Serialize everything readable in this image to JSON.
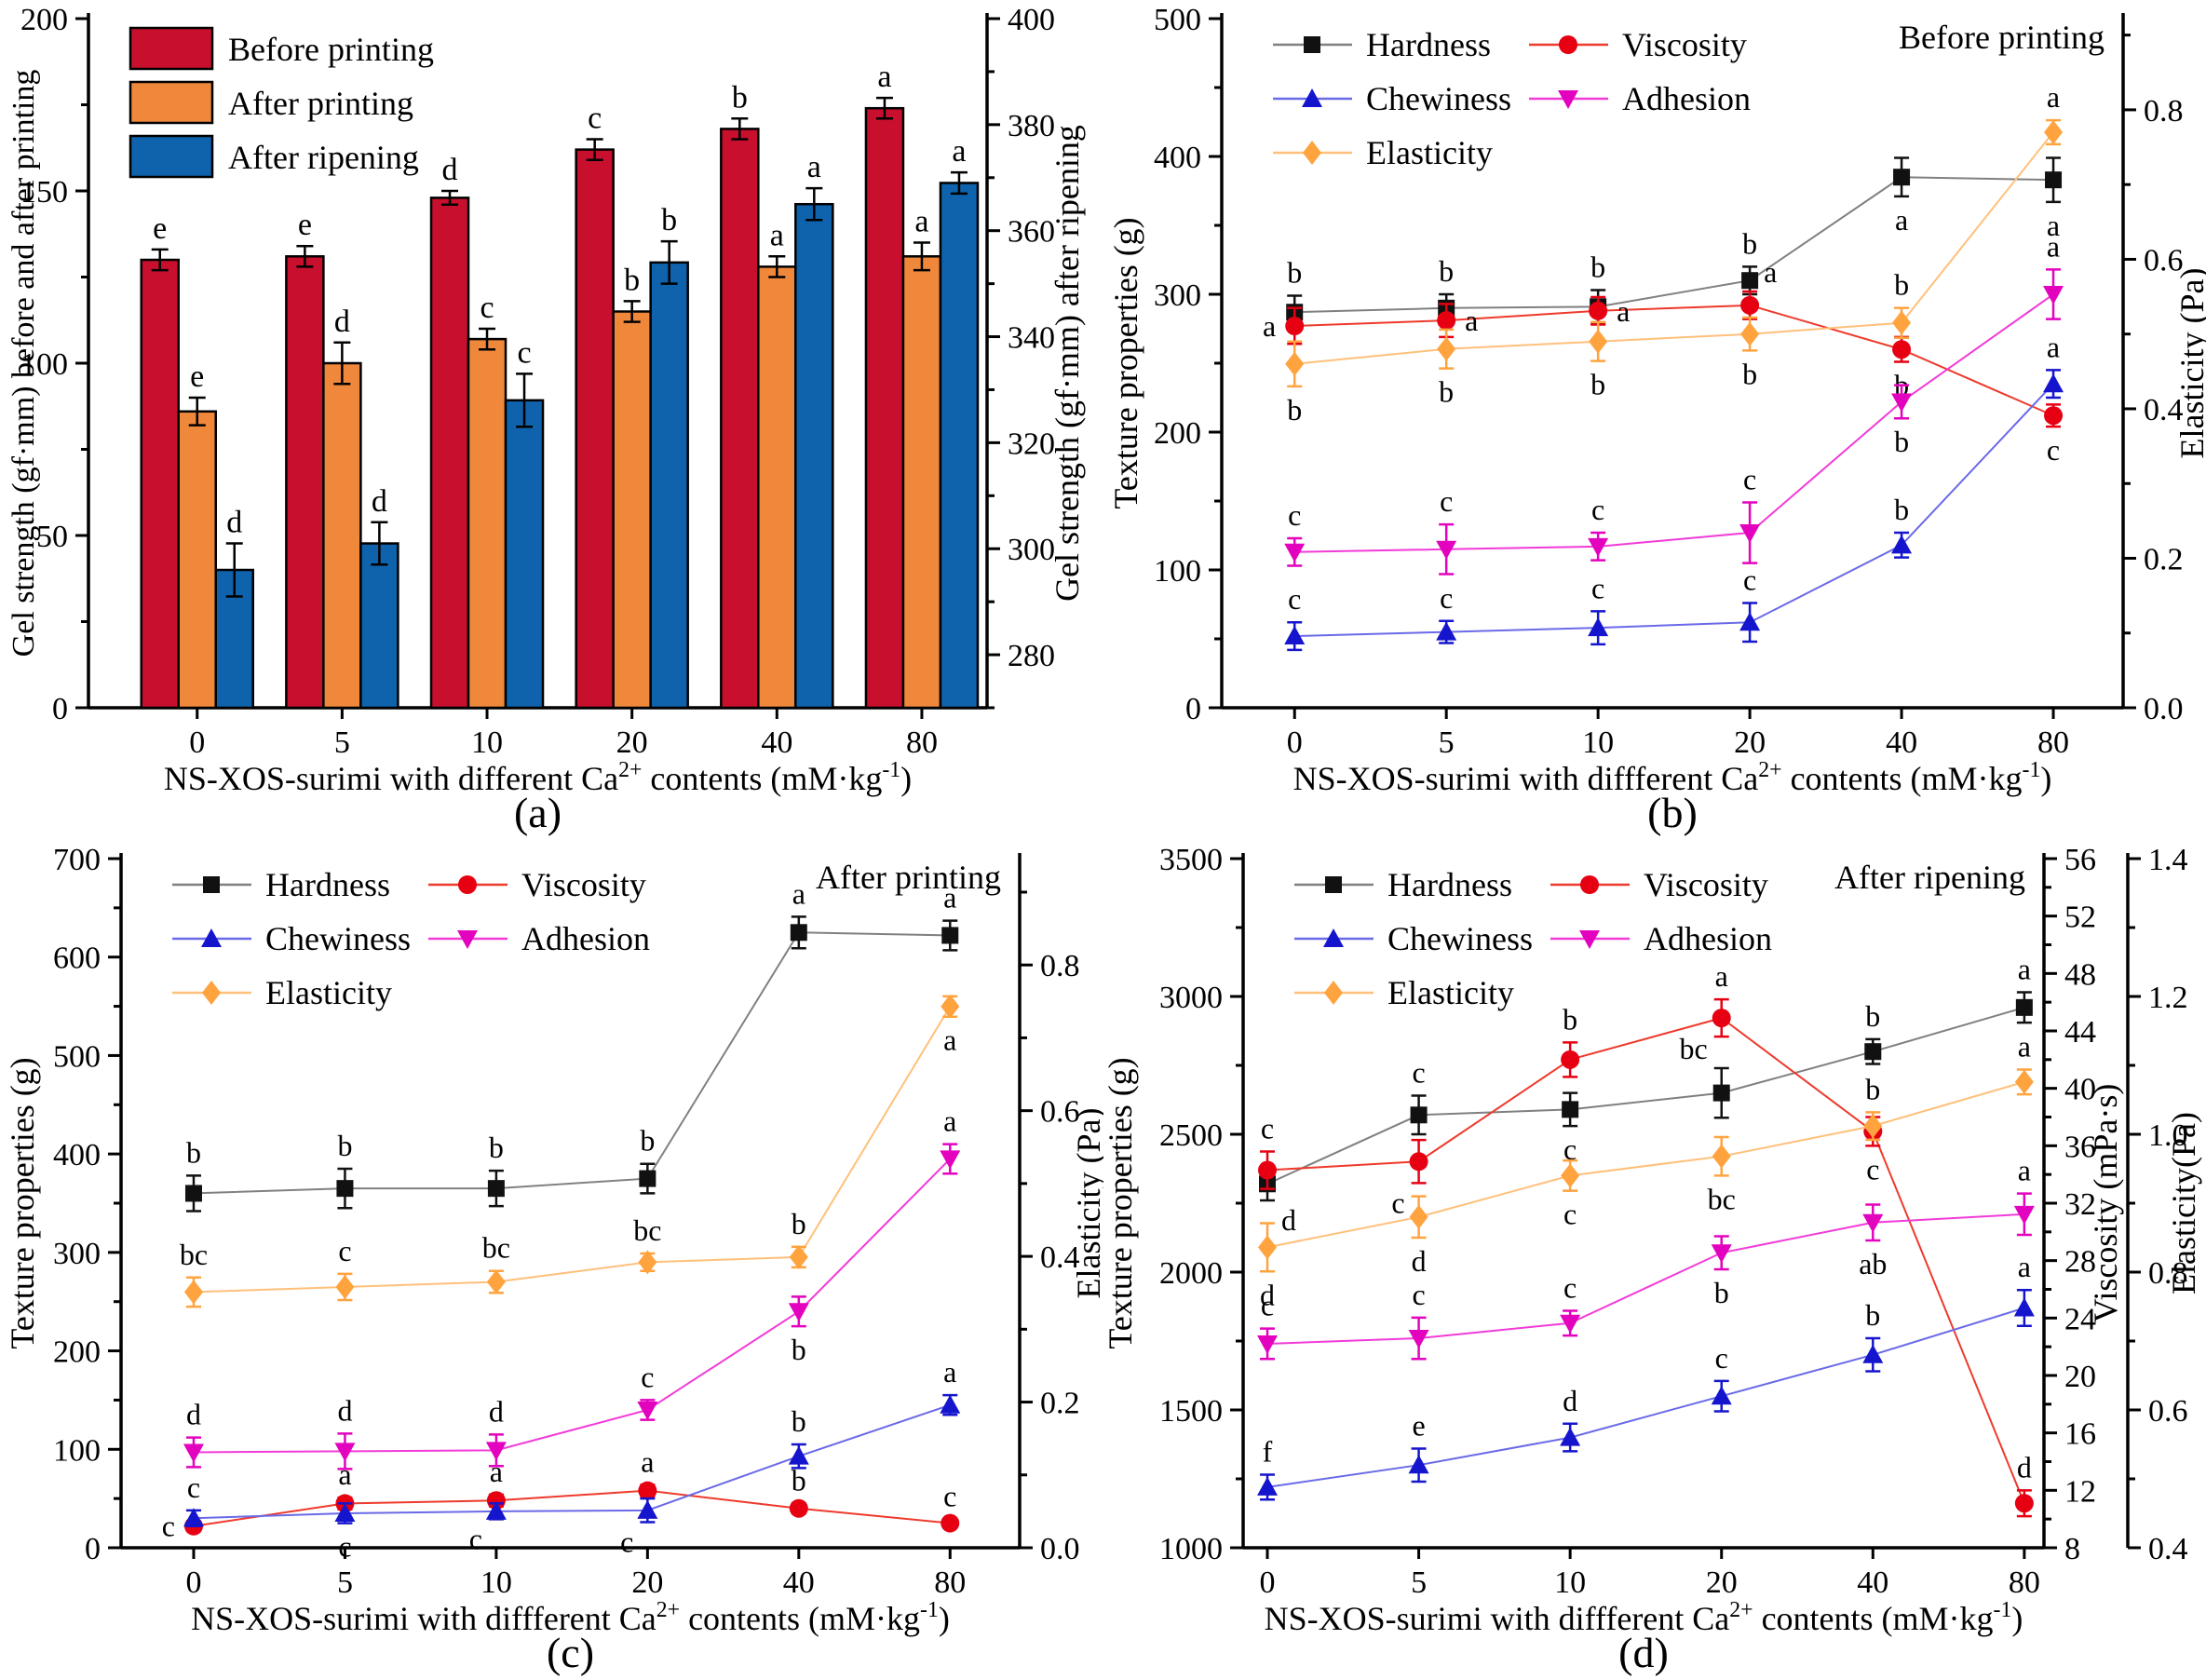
{
  "figure_background": "#ffffff",
  "axis_color": "#000000",
  "chart_data": [
    {
      "id": "a",
      "type": "bar",
      "caption": "(a)",
      "annotation": null,
      "x_categories": [
        "0",
        "5",
        "10",
        "20",
        "40",
        "80"
      ],
      "x_label_parts": [
        {
          "t": "NS-XOS-surimi with different Ca"
        },
        {
          "t": "2+",
          "sup": true
        },
        {
          "t": " contents (mM·kg"
        },
        {
          "t": "-1",
          "sup": true
        },
        {
          "t": ")"
        }
      ],
      "left_axis": {
        "label": "Gel strength (gf·mm) before and after printing",
        "min": 0,
        "max": 200,
        "ticks": [
          0,
          50,
          100,
          150,
          200
        ],
        "minor": 25,
        "fmt": 0
      },
      "right_axes": [
        {
          "label": "Gel strength (gf·mm) after ripening",
          "min": 270,
          "max": 400,
          "ticks": [
            280,
            300,
            320,
            340,
            360,
            380,
            400
          ],
          "minor": 10,
          "fmt": 0
        }
      ],
      "series": [
        {
          "name": "Before printing",
          "color": "#C8102E",
          "axis": "left",
          "values": [
            130,
            131,
            148,
            162,
            168,
            174
          ],
          "errors": [
            3,
            3,
            2,
            3,
            3,
            3
          ],
          "letters": [
            "e",
            "e",
            "d",
            "c",
            "b",
            "a"
          ]
        },
        {
          "name": "After printing",
          "color": "#F0883C",
          "axis": "left",
          "values": [
            86,
            100,
            107,
            115,
            128,
            131
          ],
          "errors": [
            4,
            6,
            3,
            3,
            3,
            4
          ],
          "letters": [
            "e",
            "d",
            "c",
            "b",
            "a",
            "a"
          ]
        },
        {
          "name": "After ripening",
          "color": "#0F63AD",
          "axis": "right0",
          "values": [
            296,
            301,
            328,
            354,
            365,
            369
          ],
          "errors": [
            5,
            4,
            5,
            4,
            3,
            2
          ],
          "letters": [
            "d",
            "d",
            "c",
            "b",
            "a",
            "a"
          ]
        }
      ]
    },
    {
      "id": "b",
      "type": "line",
      "caption": "(b)",
      "annotation": "Before printing",
      "x_categories": [
        "0",
        "5",
        "10",
        "20",
        "40",
        "80"
      ],
      "x_label_parts": [
        {
          "t": "NS-XOS-surimi with diffferent Ca"
        },
        {
          "t": "2+",
          "sup": true
        },
        {
          "t": " contents (mM·kg"
        },
        {
          "t": "-1",
          "sup": true
        },
        {
          "t": ")"
        }
      ],
      "left_axis": {
        "label": "Texture properties (g)",
        "min": 0,
        "max": 500,
        "ticks": [
          0,
          100,
          200,
          300,
          400,
          500
        ],
        "minor": 50,
        "fmt": 0
      },
      "right_axes": [
        {
          "label": "Elasticity (Pa)",
          "min": 0,
          "max": 0.922,
          "ticks": [
            0.0,
            0.2,
            0.4,
            0.6,
            0.8
          ],
          "minor": 0.1,
          "fmt": 1
        }
      ],
      "series": [
        {
          "name": "Hardness",
          "marker": "square",
          "color": "#111111",
          "line_color": "#808080",
          "axis": "left",
          "values": [
            287,
            290,
            291,
            310,
            385,
            383
          ],
          "errors": [
            12,
            10,
            12,
            10,
            14,
            16
          ],
          "letters": [
            "b",
            "b",
            "b",
            "b",
            "a",
            "a"
          ],
          "lpos": [
            "a",
            "a",
            "a",
            "a",
            "b",
            "b"
          ]
        },
        {
          "name": "Viscosity",
          "marker": "circle",
          "color": "#E60012",
          "line_color": "#EE3A2C",
          "axis": "left",
          "values": [
            277,
            281,
            288,
            292,
            260,
            212
          ],
          "errors": [
            13,
            12,
            10,
            10,
            9,
            8
          ],
          "letters": [
            "a",
            "a",
            "a",
            "a",
            "b",
            "c"
          ],
          "lpos": [
            "l",
            "r",
            "r",
            "ar",
            "b",
            "b"
          ]
        },
        {
          "name": "Chewiness",
          "marker": "triangle-up",
          "color": "#1515CD",
          "line_color": "#6A6AE8",
          "axis": "left",
          "values": [
            52,
            55,
            58,
            62,
            118,
            235
          ],
          "errors": [
            10,
            8,
            12,
            14,
            9,
            10
          ],
          "letters": [
            "c",
            "c",
            "c",
            "c",
            "b",
            "a"
          ],
          "lpos": [
            "a",
            "a",
            "a",
            "a",
            "a",
            "a"
          ]
        },
        {
          "name": "Adhesion",
          "marker": "triangle-down",
          "color": "#E302BE",
          "line_color": "#F23BD8",
          "axis": "left",
          "values": [
            113,
            115,
            117,
            127,
            222,
            300
          ],
          "errors": [
            10,
            18,
            10,
            22,
            12,
            18
          ],
          "letters": [
            "c",
            "c",
            "c",
            "c",
            "b",
            "a"
          ],
          "lpos": [
            "a",
            "a",
            "a",
            "a",
            "b",
            "a"
          ]
        },
        {
          "name": "Elasticity",
          "marker": "diamond",
          "color": "#FFA33F",
          "line_color": "#FFC07A",
          "axis": "right0",
          "values": [
            0.46,
            0.48,
            0.49,
            0.5,
            0.515,
            0.77
          ],
          "errors": [
            0.03,
            0.026,
            0.026,
            0.022,
            0.02,
            0.016
          ],
          "letters": [
            "b",
            "b",
            "b",
            "b",
            "b",
            "a"
          ],
          "lpos": [
            "b",
            "b",
            "b",
            "b",
            "a",
            "a"
          ]
        }
      ],
      "legend_columns": [
        [
          "Hardness",
          "Chewiness",
          "Elasticity"
        ],
        [
          "Viscosity",
          "Adhesion"
        ]
      ]
    },
    {
      "id": "c",
      "type": "line",
      "caption": "(c)",
      "annotation": "After printing",
      "x_categories": [
        "0",
        "5",
        "10",
        "20",
        "40",
        "80"
      ],
      "x_label_parts": [
        {
          "t": "NS-XOS-surimi with diffferent Ca"
        },
        {
          "t": "2+",
          "sup": true
        },
        {
          "t": " contents (mM·kg"
        },
        {
          "t": "-1",
          "sup": true
        },
        {
          "t": ")"
        }
      ],
      "left_axis": {
        "label": "Texture properties (g)",
        "min": 0,
        "max": 700,
        "ticks": [
          0,
          100,
          200,
          300,
          400,
          500,
          600,
          700
        ],
        "minor": 50,
        "fmt": 0
      },
      "right_axes": [
        {
          "label": "Elasticity (Pa)",
          "min": 0,
          "max": 0.946,
          "ticks": [
            0.0,
            0.2,
            0.4,
            0.6,
            0.8
          ],
          "minor": 0.1,
          "fmt": 1
        }
      ],
      "series": [
        {
          "name": "Hardness",
          "marker": "square",
          "color": "#111111",
          "line_color": "#808080",
          "axis": "left",
          "values": [
            360,
            365,
            365,
            375,
            625,
            622
          ],
          "errors": [
            18,
            20,
            18,
            15,
            16,
            15
          ],
          "letters": [
            "b",
            "b",
            "b",
            "b",
            "a",
            "a"
          ],
          "lpos": [
            "a",
            "a",
            "a",
            "a",
            "a",
            "a"
          ]
        },
        {
          "name": "Viscosity",
          "marker": "circle",
          "color": "#E60012",
          "line_color": "#EE3A2C",
          "axis": "left",
          "values": [
            22,
            45,
            48,
            58,
            40,
            25
          ],
          "errors": [
            5,
            6,
            6,
            6,
            5,
            4
          ],
          "letters": [
            "c",
            "a",
            "a",
            "a",
            "b",
            "c"
          ],
          "lpos": [
            "l",
            "a",
            "a",
            "a",
            "a",
            "a"
          ]
        },
        {
          "name": "Chewiness",
          "marker": "triangle-up",
          "color": "#1515CD",
          "line_color": "#6A6AE8",
          "axis": "left",
          "values": [
            30,
            35,
            37,
            38,
            93,
            145
          ],
          "errors": [
            8,
            10,
            8,
            12,
            12,
            10
          ],
          "letters": [
            "c",
            "c",
            "c",
            "c",
            "b",
            "a"
          ],
          "lpos": [
            "a",
            "b",
            "bl",
            "bl",
            "a",
            "a"
          ]
        },
        {
          "name": "Adhesion",
          "marker": "triangle-down",
          "color": "#E302BE",
          "line_color": "#F23BD8",
          "axis": "left",
          "values": [
            97,
            98,
            99,
            140,
            240,
            395
          ],
          "errors": [
            15,
            18,
            16,
            10,
            15,
            15
          ],
          "letters": [
            "d",
            "d",
            "d",
            "c",
            "b",
            "a"
          ],
          "lpos": [
            "a",
            "a",
            "a",
            "a",
            "b",
            "a"
          ]
        },
        {
          "name": "Elasticity",
          "marker": "diamond",
          "color": "#FFA33F",
          "line_color": "#FFC07A",
          "axis": "right0",
          "values": [
            0.351,
            0.358,
            0.365,
            0.392,
            0.399,
            0.743
          ],
          "errors": [
            0.02,
            0.018,
            0.015,
            0.012,
            0.014,
            0.014
          ],
          "letters": [
            "bc",
            "c",
            "bc",
            "bc",
            "b",
            "a"
          ],
          "lpos": [
            "a",
            "a",
            "a",
            "a",
            "a",
            "b"
          ]
        }
      ],
      "legend_columns": [
        [
          "Hardness",
          "Chewiness",
          "Elasticity"
        ],
        [
          "Viscosity",
          "Adhesion"
        ]
      ]
    },
    {
      "id": "d",
      "type": "line",
      "caption": "(d)",
      "annotation": "After ripening",
      "x_categories": [
        "0",
        "5",
        "10",
        "20",
        "40",
        "80"
      ],
      "x_label_parts": [
        {
          "t": "NS-XOS-surimi with diffferent Ca"
        },
        {
          "t": "2+",
          "sup": true
        },
        {
          "t": " contents (mM·kg"
        },
        {
          "t": "-1",
          "sup": true
        },
        {
          "t": ")"
        }
      ],
      "left_axis": {
        "label": "Texture properties (g)",
        "min": 1000,
        "max": 3500,
        "ticks": [
          1000,
          1500,
          2000,
          2500,
          3000,
          3500
        ],
        "minor": 250,
        "fmt": 0
      },
      "right_axes": [
        {
          "label": "Viscosity (mPa·s)",
          "min": 8,
          "max": 56,
          "ticks": [
            8,
            12,
            16,
            20,
            24,
            28,
            32,
            36,
            40,
            44,
            48,
            52,
            56
          ],
          "minor": 2,
          "fmt": 0
        },
        {
          "label": "Elasticity(Pa)",
          "min": 0.4,
          "max": 1.4,
          "ticks": [
            0.4,
            0.6,
            0.8,
            1.0,
            1.2,
            1.4
          ],
          "minor": 0.1,
          "fmt": 1
        }
      ],
      "series": [
        {
          "name": "Hardness",
          "marker": "square",
          "color": "#111111",
          "line_color": "#808080",
          "axis": "left",
          "values": [
            2320,
            2570,
            2590,
            2650,
            2800,
            2960
          ],
          "errors": [
            60,
            70,
            60,
            90,
            45,
            55
          ],
          "letters": [
            "d",
            "c",
            "c",
            "bc",
            "b",
            "a"
          ],
          "lpos": [
            "br",
            "a",
            "b",
            "al",
            "a",
            "a"
          ]
        },
        {
          "name": "Viscosity",
          "marker": "circle",
          "color": "#E60012",
          "line_color": "#EE3A2C",
          "axis": "right0",
          "values": [
            34.3,
            34.9,
            42.0,
            44.9,
            37.0,
            11.1
          ],
          "errors": [
            1.3,
            1.5,
            1.2,
            1.3,
            1.0,
            0.9
          ],
          "letters": [
            "c",
            "c",
            "b",
            "a",
            "c",
            "d"
          ],
          "lpos": [
            "a",
            "bl",
            "a",
            "a",
            "b",
            "a"
          ]
        },
        {
          "name": "Chewiness",
          "marker": "triangle-up",
          "color": "#1515CD",
          "line_color": "#6A6AE8",
          "axis": "left",
          "values": [
            1220,
            1300,
            1400,
            1550,
            1700,
            1870
          ],
          "errors": [
            45,
            60,
            50,
            55,
            60,
            65
          ],
          "letters": [
            "f",
            "e",
            "d",
            "c",
            "b",
            "a"
          ],
          "lpos": [
            "a",
            "a",
            "a",
            "a",
            "a",
            "a"
          ]
        },
        {
          "name": "Adhesion",
          "marker": "triangle-down",
          "color": "#E302BE",
          "line_color": "#F23BD8",
          "axis": "left",
          "values": [
            1740,
            1760,
            1815,
            2070,
            2180,
            2210
          ],
          "errors": [
            55,
            75,
            45,
            60,
            65,
            75
          ],
          "letters": [
            "c",
            "c",
            "c",
            "b",
            "ab",
            "a"
          ],
          "lpos": [
            "a",
            "a",
            "a",
            "b",
            "b",
            "a"
          ]
        },
        {
          "name": "Elasticity",
          "marker": "diamond",
          "color": "#FFA33F",
          "line_color": "#FFC07A",
          "axis": "right1",
          "values": [
            0.836,
            0.88,
            0.94,
            0.968,
            1.012,
            1.076
          ],
          "errors": [
            0.035,
            0.03,
            0.022,
            0.028,
            0.02,
            0.018
          ],
          "letters": [
            "d",
            "d",
            "c",
            "bc",
            "b",
            "a"
          ],
          "lpos": [
            "b",
            "b",
            "b",
            "b",
            "a",
            "a"
          ]
        }
      ],
      "legend_columns": [
        [
          "Hardness",
          "Chewiness",
          "Elasticity"
        ],
        [
          "Viscosity",
          "Adhesion"
        ]
      ]
    }
  ]
}
